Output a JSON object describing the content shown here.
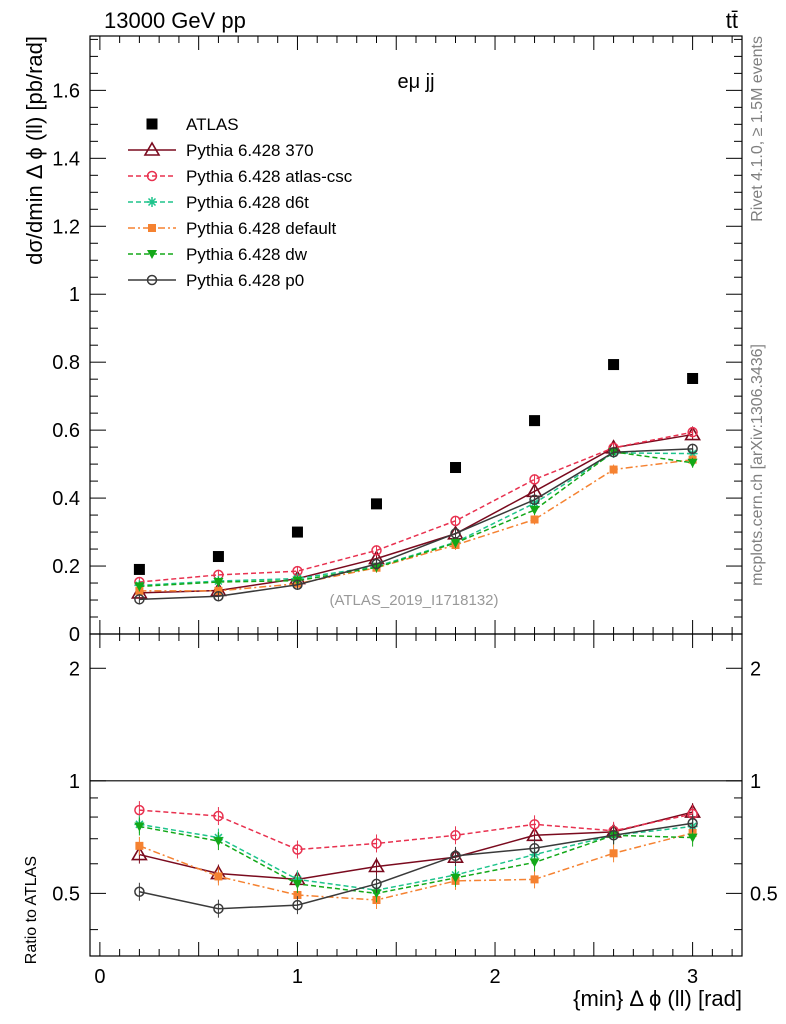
{
  "header": {
    "left": "13000 GeV pp",
    "right": "tt̄"
  },
  "side_text": {
    "rivet": "Rivet 4.1.0, ≥ 1.5M events",
    "mcplots": "mcplots.cern.ch [arXiv:1306.3436]"
  },
  "chart_data": {
    "type": "scatter",
    "title": "eμ jj",
    "analysis_label": "(ATLAS_2019_I1718132)",
    "xlabel": "{min} Δ ϕ (ll) [rad]",
    "ylabel": "dσ/dmin Δ ϕ (ll) [pb/rad]",
    "ratio_ylabel": "Ratio to ATLAS",
    "xlim": [
      -0.05,
      3.25
    ],
    "ylim": [
      0,
      1.76
    ],
    "ratio_ylim": [
      0.34,
      2.47
    ],
    "x_ticks": [
      "0",
      "1",
      "2",
      "3"
    ],
    "y_ticks": [
      "0",
      "0.2",
      "0.4",
      "0.6",
      "0.8",
      "1",
      "1.2",
      "1.4",
      "1.6"
    ],
    "ratio_ticks": [
      "0.5",
      "1",
      "2"
    ],
    "x": [
      0.2,
      0.6,
      1.0,
      1.4,
      1.8,
      2.2,
      2.6,
      3.0
    ],
    "data": {
      "name": "ATLAS",
      "color": "#000000",
      "values": [
        0.19,
        0.228,
        0.3,
        0.383,
        0.49,
        0.628,
        0.793,
        0.752
      ]
    },
    "series": [
      {
        "name": "Pythia 6.428 370",
        "color": "#7a0a1e",
        "dash": "",
        "marker": "triangle-open",
        "values": [
          0.121,
          0.128,
          0.163,
          0.222,
          0.295,
          0.42,
          0.548,
          0.587
        ],
        "ratio": [
          0.635,
          0.565,
          0.545,
          0.59,
          0.625,
          0.715,
          0.73,
          0.825
        ]
      },
      {
        "name": "Pythia 6.428 atlas-csc",
        "color": "#e8314f",
        "dash": "5,3",
        "marker": "circle-open",
        "values": [
          0.153,
          0.174,
          0.185,
          0.246,
          0.333,
          0.455,
          0.548,
          0.594
        ],
        "ratio": [
          0.835,
          0.805,
          0.655,
          0.68,
          0.715,
          0.765,
          0.735,
          0.815
        ]
      },
      {
        "name": "Pythia 6.428 d6t",
        "color": "#1ec48c",
        "dash": "5,3",
        "marker": "star",
        "values": [
          0.143,
          0.156,
          0.163,
          0.199,
          0.27,
          0.385,
          0.533,
          0.531
        ],
        "ratio": [
          0.765,
          0.705,
          0.545,
          0.51,
          0.56,
          0.635,
          0.715,
          0.755
        ]
      },
      {
        "name": "Pythia 6.428 default",
        "color": "#f58231",
        "dash": "7,3,2,3",
        "marker": "square",
        "values": [
          0.127,
          0.127,
          0.148,
          0.195,
          0.262,
          0.337,
          0.484,
          0.513
        ],
        "ratio": [
          0.67,
          0.555,
          0.495,
          0.48,
          0.54,
          0.545,
          0.64,
          0.725
        ]
      },
      {
        "name": "Pythia 6.428 dw",
        "color": "#13a818",
        "dash": "5,3",
        "marker": "triangle-down",
        "values": [
          0.14,
          0.153,
          0.157,
          0.196,
          0.268,
          0.365,
          0.536,
          0.504
        ],
        "ratio": [
          0.755,
          0.69,
          0.53,
          0.5,
          0.55,
          0.605,
          0.715,
          0.705
        ]
      },
      {
        "name": "Pythia 6.428 p0",
        "color": "#3a3a3a",
        "dash": "",
        "marker": "circle-open",
        "values": [
          0.102,
          0.111,
          0.145,
          0.206,
          0.296,
          0.395,
          0.535,
          0.545
        ],
        "ratio": [
          0.505,
          0.455,
          0.465,
          0.53,
          0.63,
          0.66,
          0.715,
          0.77
        ]
      }
    ]
  }
}
